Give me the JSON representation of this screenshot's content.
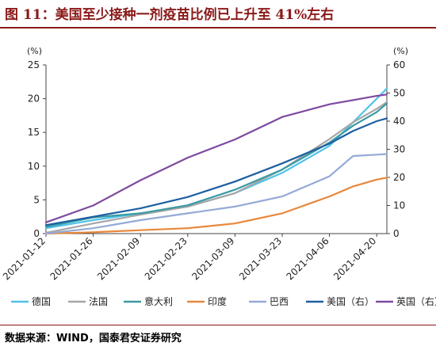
{
  "page": {
    "title": "图 11：美国至少接种一剂疫苗比例已上升至 41%左右",
    "source": "数据来源：WIND，国泰君安证券研究"
  },
  "chart_data": {
    "type": "line",
    "x_ticks": [
      "2021-01-12",
      "2021-01-26",
      "2021-02-09",
      "2021-02-23",
      "2021-03-09",
      "2021-03-23",
      "2021-04-06",
      "2021-04-20"
    ],
    "x_range": [
      "2021-01-12",
      "2021-04-23"
    ],
    "y_left": {
      "unit": "(%)",
      "ylim": [
        0,
        25
      ],
      "ticks": [
        0,
        5,
        10,
        15,
        20,
        25
      ]
    },
    "y_right": {
      "unit": "(%)",
      "ylim": [
        0,
        60
      ],
      "ticks": [
        0,
        10,
        20,
        30,
        40,
        50,
        60
      ]
    },
    "grid": false,
    "legend_position": "bottom",
    "series": [
      {
        "name": "德国",
        "axis": "left",
        "color": "#4fc3e8",
        "points": [
          [
            "2021-01-12",
            0.8
          ],
          [
            "2021-01-26",
            2.0
          ],
          [
            "2021-02-09",
            3.0
          ],
          [
            "2021-02-23",
            4.0
          ],
          [
            "2021-03-09",
            6.0
          ],
          [
            "2021-03-23",
            9.0
          ],
          [
            "2021-04-06",
            13.0
          ],
          [
            "2021-04-13",
            16.5
          ],
          [
            "2021-04-20",
            20.0
          ],
          [
            "2021-04-23",
            21.5
          ]
        ]
      },
      {
        "name": "法国",
        "axis": "left",
        "color": "#a6a6a6",
        "points": [
          [
            "2021-01-12",
            0.1
          ],
          [
            "2021-01-26",
            1.5
          ],
          [
            "2021-02-09",
            2.8
          ],
          [
            "2021-02-23",
            4.0
          ],
          [
            "2021-03-09",
            6.0
          ],
          [
            "2021-03-23",
            9.5
          ],
          [
            "2021-04-06",
            14.0
          ],
          [
            "2021-04-13",
            16.5
          ],
          [
            "2021-04-20",
            18.5
          ],
          [
            "2021-04-23",
            19.5
          ]
        ]
      },
      {
        "name": "意大利",
        "axis": "left",
        "color": "#3a9aa4",
        "points": [
          [
            "2021-01-12",
            1.0
          ],
          [
            "2021-01-26",
            2.4
          ],
          [
            "2021-02-09",
            3.0
          ],
          [
            "2021-02-23",
            4.2
          ],
          [
            "2021-03-09",
            6.5
          ],
          [
            "2021-03-23",
            9.5
          ],
          [
            "2021-04-06",
            13.5
          ],
          [
            "2021-04-13",
            16.0
          ],
          [
            "2021-04-20",
            18.0
          ],
          [
            "2021-04-23",
            19.3
          ]
        ]
      },
      {
        "name": "印度",
        "axis": "left",
        "color": "#e8873a",
        "points": [
          [
            "2021-01-12",
            0.0
          ],
          [
            "2021-01-26",
            0.2
          ],
          [
            "2021-02-09",
            0.5
          ],
          [
            "2021-02-23",
            0.8
          ],
          [
            "2021-03-09",
            1.5
          ],
          [
            "2021-03-23",
            3.0
          ],
          [
            "2021-04-06",
            5.5
          ],
          [
            "2021-04-13",
            7.0
          ],
          [
            "2021-04-20",
            8.0
          ],
          [
            "2021-04-23",
            8.3
          ]
        ]
      },
      {
        "name": "巴西",
        "axis": "left",
        "color": "#94aad6",
        "points": [
          [
            "2021-01-12",
            0.0
          ],
          [
            "2021-01-26",
            0.8
          ],
          [
            "2021-02-09",
            2.0
          ],
          [
            "2021-02-23",
            3.0
          ],
          [
            "2021-03-09",
            4.0
          ],
          [
            "2021-03-23",
            5.5
          ],
          [
            "2021-04-06",
            8.5
          ],
          [
            "2021-04-13",
            11.5
          ],
          [
            "2021-04-20",
            11.7
          ],
          [
            "2021-04-23",
            11.8
          ]
        ]
      },
      {
        "name": "美国（右）",
        "axis": "right",
        "color": "#1c5fa0",
        "points": [
          [
            "2021-01-12",
            3.0
          ],
          [
            "2021-01-26",
            6.0
          ],
          [
            "2021-02-09",
            9.0
          ],
          [
            "2021-02-23",
            13.0
          ],
          [
            "2021-03-09",
            18.5
          ],
          [
            "2021-03-23",
            25.0
          ],
          [
            "2021-04-06",
            32.0
          ],
          [
            "2021-04-13",
            36.5
          ],
          [
            "2021-04-20",
            40.0
          ],
          [
            "2021-04-23",
            41.0
          ]
        ]
      },
      {
        "name": "英国（右）",
        "axis": "right",
        "color": "#7e4aa0",
        "points": [
          [
            "2021-01-12",
            4.0
          ],
          [
            "2021-01-26",
            10.0
          ],
          [
            "2021-02-09",
            19.0
          ],
          [
            "2021-02-23",
            27.0
          ],
          [
            "2021-03-09",
            33.5
          ],
          [
            "2021-03-23",
            41.5
          ],
          [
            "2021-04-06",
            46.0
          ],
          [
            "2021-04-13",
            47.5
          ],
          [
            "2021-04-20",
            49.0
          ],
          [
            "2021-04-23",
            49.5
          ]
        ]
      }
    ]
  }
}
